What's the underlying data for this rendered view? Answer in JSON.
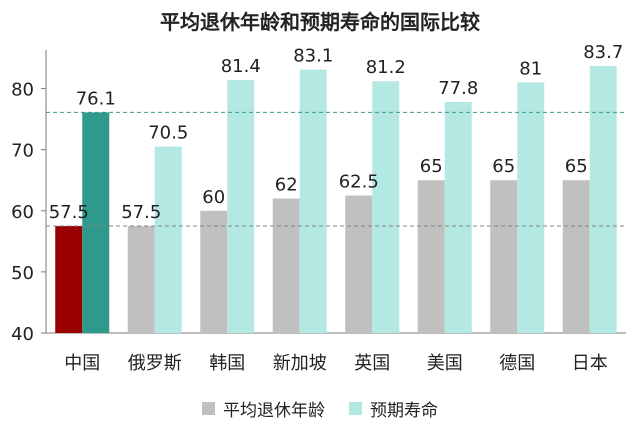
{
  "chart_data": {
    "type": "bar",
    "title": "平均退休年龄和预期寿命的国际比较",
    "categories": [
      "中国",
      "俄罗斯",
      "韩国",
      "新加坡",
      "英国",
      "美国",
      "德国",
      "日本"
    ],
    "series": [
      {
        "name": "平均退休年龄",
        "values": [
          57.5,
          57.5,
          60,
          62,
          62.5,
          65,
          65,
          65
        ],
        "labels": [
          "57.5",
          "57.5",
          "60",
          "62",
          "62.5",
          "65",
          "65",
          "65"
        ],
        "color": "#c0c0c0",
        "highlight_color": "#9b0000"
      },
      {
        "name": "预期寿命",
        "values": [
          76.1,
          70.5,
          81.4,
          83.1,
          81.2,
          77.8,
          81,
          83.7
        ],
        "labels": [
          "76.1",
          "70.5",
          "81.4",
          "83.1",
          "81.2",
          "77.8",
          "81",
          "83.7"
        ],
        "color": "#b3e8e3",
        "highlight_color": "#2f9a8c"
      }
    ],
    "highlight_category": "中国",
    "ylim": [
      40,
      85
    ],
    "yticks": [
      "40",
      "50",
      "60",
      "70",
      "80"
    ],
    "reference_lines": [
      {
        "value": 76.1,
        "color": "#3f9a86",
        "style": "dashed"
      },
      {
        "value": 57.5,
        "color": "#7d8a86",
        "style": "dashed"
      }
    ],
    "legend_position": "bottom",
    "grid": false
  }
}
